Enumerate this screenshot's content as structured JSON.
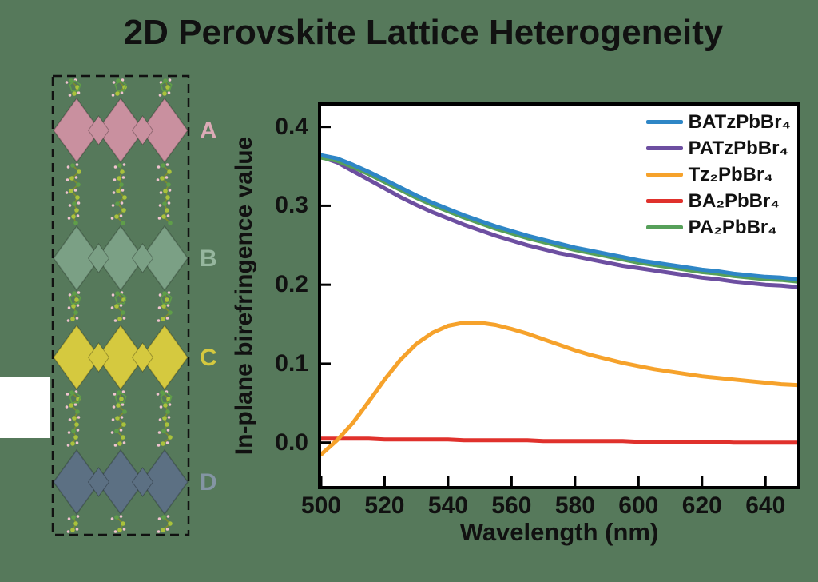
{
  "figure": {
    "title": "2D Perovskite Lattice Heterogeneity",
    "background_color": "#56795b"
  },
  "structure_panel": {
    "rows": [
      {
        "label": "A",
        "octahedra_color": "#c9909f",
        "label_color": "#dcaab6"
      },
      {
        "label": "B",
        "octahedra_color": "#7ba085",
        "label_color": "#96b69e"
      },
      {
        "label": "C",
        "octahedra_color": "#d5c93f",
        "label_color": "#d5c93f"
      },
      {
        "label": "D",
        "octahedra_color": "#5c7083",
        "label_color": "#8495a4"
      }
    ],
    "molecule_colors": {
      "carbon": "#a9c23c",
      "ring_atom": "#5f9e49",
      "hydrogen": "#f0c3cf",
      "bond": "#7d8c2e"
    }
  },
  "chart_data": {
    "type": "line",
    "title": "",
    "xlabel": "Wavelength (nm)",
    "ylabel": "In-plane birefringence value",
    "xlim": [
      500,
      650
    ],
    "ylim": [
      -0.055,
      0.427
    ],
    "xticks": [
      500,
      520,
      540,
      560,
      580,
      600,
      620,
      640
    ],
    "yticks": [
      {
        "value": 0.0,
        "label": "0.0"
      },
      {
        "value": 0.1,
        "label": "0.1"
      },
      {
        "value": 0.2,
        "label": "0.2"
      },
      {
        "value": 0.3,
        "label": "0.3"
      },
      {
        "value": 0.4,
        "label": "0.4"
      }
    ],
    "grid": false,
    "legend_position": "top-right",
    "x": [
      500,
      505,
      510,
      515,
      520,
      525,
      530,
      535,
      540,
      545,
      550,
      555,
      560,
      565,
      570,
      575,
      580,
      585,
      590,
      595,
      600,
      605,
      610,
      615,
      620,
      625,
      630,
      635,
      640,
      645,
      650
    ],
    "series": [
      {
        "name": "BATzPbBr₄",
        "color": "#2e86c6",
        "values": [
          0.364,
          0.36,
          0.352,
          0.343,
          0.333,
          0.323,
          0.313,
          0.304,
          0.296,
          0.288,
          0.281,
          0.274,
          0.268,
          0.262,
          0.257,
          0.252,
          0.247,
          0.243,
          0.239,
          0.235,
          0.231,
          0.228,
          0.225,
          0.222,
          0.219,
          0.217,
          0.214,
          0.212,
          0.21,
          0.209,
          0.207
        ]
      },
      {
        "name": "PATzPbBr₄",
        "color": "#6d4fa1",
        "values": [
          0.362,
          0.355,
          0.344,
          0.333,
          0.322,
          0.311,
          0.301,
          0.292,
          0.284,
          0.276,
          0.269,
          0.262,
          0.256,
          0.25,
          0.245,
          0.24,
          0.236,
          0.232,
          0.228,
          0.224,
          0.221,
          0.218,
          0.215,
          0.212,
          0.209,
          0.207,
          0.204,
          0.202,
          0.2,
          0.199,
          0.197
        ]
      },
      {
        "name": "Tz₂PbBr₄",
        "color": "#f6a22b",
        "values": [
          -0.015,
          0.003,
          0.025,
          0.052,
          0.08,
          0.105,
          0.125,
          0.139,
          0.148,
          0.152,
          0.152,
          0.149,
          0.144,
          0.138,
          0.131,
          0.124,
          0.117,
          0.111,
          0.106,
          0.101,
          0.097,
          0.093,
          0.09,
          0.087,
          0.084,
          0.082,
          0.08,
          0.078,
          0.076,
          0.074,
          0.073
        ]
      },
      {
        "name": "BA₂PbBr₄",
        "color": "#e0312c",
        "values": [
          0.005,
          0.005,
          0.005,
          0.005,
          0.004,
          0.004,
          0.004,
          0.004,
          0.004,
          0.003,
          0.003,
          0.003,
          0.003,
          0.003,
          0.002,
          0.002,
          0.002,
          0.002,
          0.002,
          0.002,
          0.001,
          0.001,
          0.001,
          0.001,
          0.001,
          0.001,
          0.0,
          0.0,
          0.0,
          0.0,
          0.0
        ]
      },
      {
        "name": "PA₂PbBr₄",
        "color": "#57a05a",
        "values": [
          0.361,
          0.357,
          0.349,
          0.34,
          0.33,
          0.32,
          0.31,
          0.301,
          0.293,
          0.285,
          0.278,
          0.271,
          0.265,
          0.259,
          0.254,
          0.249,
          0.244,
          0.24,
          0.236,
          0.232,
          0.228,
          0.225,
          0.222,
          0.219,
          0.216,
          0.214,
          0.211,
          0.209,
          0.207,
          0.206,
          0.204
        ]
      }
    ],
    "draw_order": [
      1,
      4,
      0,
      3,
      2
    ]
  }
}
